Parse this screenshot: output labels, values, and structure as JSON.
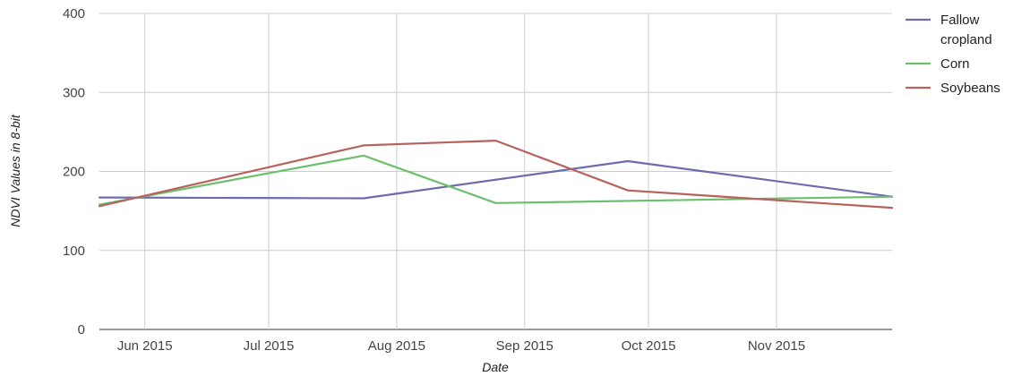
{
  "chart_data": {
    "type": "line",
    "xlabel": "Date",
    "ylabel": "NDVI Values in 8-bit",
    "x_ticks": [
      "Jun 2015",
      "Jul 2015",
      "Aug 2015",
      "Sep 2015",
      "Oct 2015",
      "Nov 2015"
    ],
    "y_ticks": [
      0,
      100,
      200,
      300,
      400
    ],
    "ylim": [
      0,
      400
    ],
    "xlim": [
      "2015-05-21",
      "2015-11-29"
    ],
    "grid": true,
    "legend_position": "right",
    "series": [
      {
        "name": "Fallow cropland",
        "name_lines": [
          "Fallow",
          "cropland"
        ],
        "color": "#6c6cae",
        "points": [
          {
            "x": "2015-05-21",
            "y": 167
          },
          {
            "x": "2015-07-24",
            "y": 166
          },
          {
            "x": "2015-09-26",
            "y": 213
          },
          {
            "x": "2015-11-29",
            "y": 168
          }
        ]
      },
      {
        "name": "Corn",
        "name_lines": [
          "Corn"
        ],
        "color": "#6dbf6d",
        "points": [
          {
            "x": "2015-05-21",
            "y": 158
          },
          {
            "x": "2015-07-24",
            "y": 220
          },
          {
            "x": "2015-08-25",
            "y": 160
          },
          {
            "x": "2015-11-29",
            "y": 168
          }
        ]
      },
      {
        "name": "Soybeans",
        "name_lines": [
          "Soybeans"
        ],
        "color": "#b8625e",
        "points": [
          {
            "x": "2015-05-21",
            "y": 156
          },
          {
            "x": "2015-07-24",
            "y": 233
          },
          {
            "x": "2015-08-25",
            "y": 239
          },
          {
            "x": "2015-09-26",
            "y": 176
          },
          {
            "x": "2015-11-29",
            "y": 154
          }
        ]
      }
    ]
  }
}
